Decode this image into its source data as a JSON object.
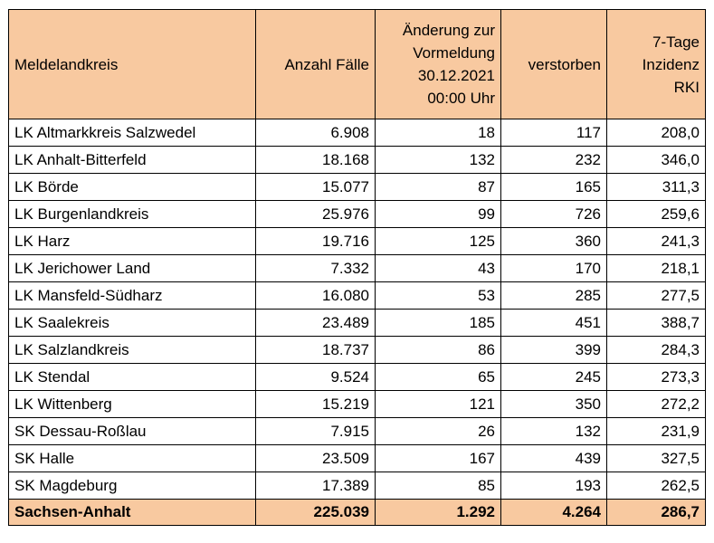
{
  "headers": [
    [
      "Meldelandkreis"
    ],
    [
      "Anzahl Fälle"
    ],
    [
      "Änderung zur",
      "Vormeldung",
      "30.12.2021",
      "00:00 Uhr"
    ],
    [
      "verstorben"
    ],
    [
      "7-Tage",
      "Inzidenz",
      "RKI"
    ]
  ],
  "rows": [
    [
      "LK Altmarkkreis Salzwedel",
      "6.908",
      "18",
      "117",
      "208,0"
    ],
    [
      "LK Anhalt-Bitterfeld",
      "18.168",
      "132",
      "232",
      "346,0"
    ],
    [
      "LK Börde",
      "15.077",
      "87",
      "165",
      "311,3"
    ],
    [
      "LK Burgenlandkreis",
      "25.976",
      "99",
      "726",
      "259,6"
    ],
    [
      "LK Harz",
      "19.716",
      "125",
      "360",
      "241,3"
    ],
    [
      "LK Jerichower Land",
      "7.332",
      "43",
      "170",
      "218,1"
    ],
    [
      "LK Mansfeld-Südharz",
      "16.080",
      "53",
      "285",
      "277,5"
    ],
    [
      "LK Saalekreis",
      "23.489",
      "185",
      "451",
      "388,7"
    ],
    [
      "LK Salzlandkreis",
      "18.737",
      "86",
      "399",
      "284,3"
    ],
    [
      "LK Stendal",
      "9.524",
      "65",
      "245",
      "273,3"
    ],
    [
      "LK Wittenberg",
      "15.219",
      "121",
      "350",
      "272,2"
    ],
    [
      "SK Dessau-Roßlau",
      "7.915",
      "26",
      "132",
      "231,9"
    ],
    [
      "SK Halle",
      "23.509",
      "167",
      "439",
      "327,5"
    ],
    [
      "SK Magdeburg",
      "17.389",
      "85",
      "193",
      "262,5"
    ]
  ],
  "total": [
    "Sachsen-Anhalt",
    "225.039",
    "1.292",
    "4.264",
    "286,7"
  ],
  "colors": {
    "header_bg": "#f8c9a0",
    "total_bg": "#f8c9a0",
    "border": "#000000"
  }
}
